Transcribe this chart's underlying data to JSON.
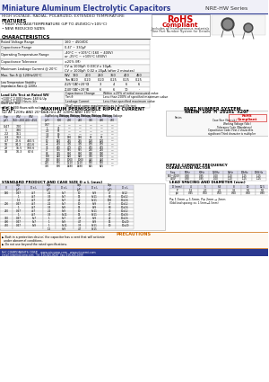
{
  "title_main": "Miniature Aluminum Electrolytic Capacitors",
  "title_series": "NRE-HW Series",
  "subtitle": "HIGH VOLTAGE, RADIAL, POLARIZED, EXTENDED TEMPERATURE",
  "features": [
    "HIGH VOLTAGE/TEMPERATURE (UP TO 450VDC/+105°C)",
    "NEW REDUCED SIZES"
  ],
  "rohs_text": "RoHS\nCompliant",
  "rohs_sub": "Includes all homogeneous materials",
  "rohs_sub2": "*See Part Number System for Details",
  "char_title": "CHARACTERISTICS",
  "char_rows": [
    [
      "Rated Voltage Range",
      "160 ~ 450VDC"
    ],
    [
      "Capacitance Range",
      "0.47 ~ 330μF"
    ],
    [
      "Operating Temperature Range",
      "-40°C ~ +105°C (160 ~ 400V)\nor -25°C ~ +105°C (450V)"
    ],
    [
      "Capacitance Tolerance",
      "±20% (M)"
    ],
    [
      "Maximum Leakage Current @ 20°C",
      "CV ≤ 1000pF: 0.03CV x 10μA, CV > 1000pF: 0.02 x 20μA (after 2 minutes)"
    ]
  ],
  "max_tan_header": [
    "W.V.",
    "160",
    "200",
    "250",
    "350",
    "400",
    "450"
  ],
  "max_tan_rows": [
    [
      "Max. Tan δ @ 120Hz/20°C",
      "W.V.",
      "160",
      "200",
      "250",
      "350",
      "400",
      "450"
    ],
    [
      "",
      "Tan δ",
      "0.20",
      "0.20",
      "0.20",
      "0.25",
      "0.25",
      "0.25"
    ]
  ],
  "low_temp_rows": [
    [
      "Low Temperature Stability\nImpedance Ratio @ 120Hz",
      "Z-25°C/Z+20°C",
      "3",
      "3",
      "3",
      "4",
      "6",
      "6"
    ],
    [
      "",
      "Z-40°C/Z+20°C",
      "6",
      "6",
      "6",
      "6",
      "10",
      "-"
    ]
  ],
  "load_life_title": "Load Life Test at Rated WV",
  "load_life_sub": "+100°C 2,000 Hours: 160 & Up\n+100°C 1,000 Hours: life",
  "shelf_life_title": "Shelf Life Test:\n+85°C 1,000 Hours with no load",
  "load_life_items": [
    [
      "Capacitance Change",
      "Within ±20% of initial measured value"
    ],
    [
      "Tan δ",
      "Less than 200% of specified maximum value"
    ],
    [
      "Leakage Current",
      "Less than specified maximum value"
    ]
  ],
  "shelf_life_note": "Shall meet same requirements as in load life test",
  "esr_title": "E.S.R.",
  "esr_sub": "(Ω) AT 120Hz AND 20°C)",
  "esr_col_headers": [
    "Cap\n(μF)",
    "W.V.\n160~200",
    "W.V.\n400~450"
  ],
  "esr_data": [
    [
      "0.47",
      "700",
      ""
    ],
    [
      "1",
      "330",
      ""
    ],
    [
      "2.2",
      "151",
      ""
    ],
    [
      "3.3",
      "103",
      ""
    ],
    [
      "4.7",
      "72.6",
      "460.5"
    ],
    [
      "10",
      "34.2",
      "411.6"
    ],
    [
      "22",
      "15.5",
      "100.6"
    ],
    [
      "33",
      "10.3",
      "67.6"
    ]
  ],
  "ripple_title": "MAXIMUM PERMISSIBLE RIPPLE CURRENT",
  "ripple_sub": "(mA rms AT 120Hz AND 105°C)",
  "part_num_title": "PART NUMBER SYSTEM",
  "part_num_example": "NREHW 100 M 20101 X20F",
  "standard_prod_title": "STANDARD PRODUCT AND CASE SIZE D x L (mm)",
  "lead_spacing_title": "LEAD SPACING AND DIAMETER (mm)",
  "correction_title": "RIPPLE CURRENT FREQUENCY\nCORRECTION FACTOR",
  "bg_color": "#ffffff",
  "header_color": "#2b3990",
  "table_line_color": "#aaaaaa",
  "title_bg": "#e8e8f0"
}
